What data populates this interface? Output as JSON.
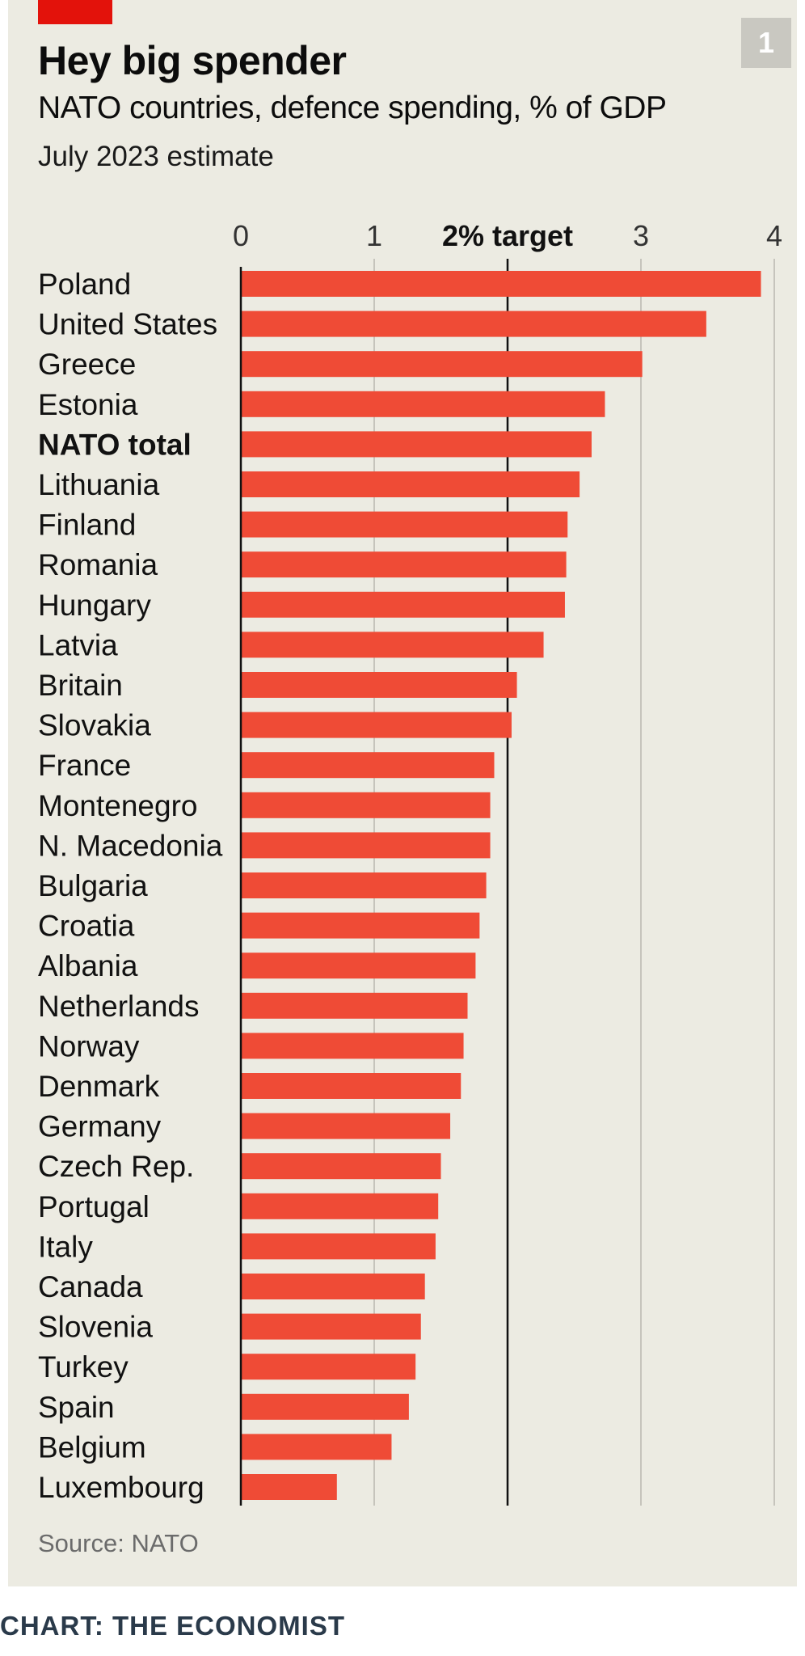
{
  "header": {
    "title": "Hey big spender",
    "subtitle": "NATO countries, defence spending, % of GDP",
    "note": "July 2023 estimate",
    "badge": "1"
  },
  "footer": {
    "source": "Source: NATO",
    "credit": "CHART: THE ECONOMIST"
  },
  "colors": {
    "bar": "#ef4b36",
    "background": "#ecebe2",
    "accent": "#e3120b"
  },
  "chart_data": {
    "type": "bar",
    "orientation": "horizontal",
    "title": "Hey big spender",
    "subtitle": "NATO countries, defence spending, % of GDP",
    "xlim": [
      0,
      4
    ],
    "x_ticks": [
      {
        "value": 0,
        "label": "0"
      },
      {
        "value": 1,
        "label": "1"
      },
      {
        "value": 2,
        "label": "2% target",
        "emphasis": true
      },
      {
        "value": 3,
        "label": "3"
      },
      {
        "value": 4,
        "label": "4"
      }
    ],
    "grid": true,
    "reference_line": 2,
    "categories": [
      "Poland",
      "United States",
      "Greece",
      "Estonia",
      "NATO total",
      "Lithuania",
      "Finland",
      "Romania",
      "Hungary",
      "Latvia",
      "Britain",
      "Slovakia",
      "France",
      "Montenegro",
      "N. Macedonia",
      "Bulgaria",
      "Croatia",
      "Albania",
      "Netherlands",
      "Norway",
      "Denmark",
      "Germany",
      "Czech Rep.",
      "Portugal",
      "Italy",
      "Canada",
      "Slovenia",
      "Turkey",
      "Spain",
      "Belgium",
      "Luxembourg"
    ],
    "values": [
      3.9,
      3.49,
      3.01,
      2.73,
      2.63,
      2.54,
      2.45,
      2.44,
      2.43,
      2.27,
      2.07,
      2.03,
      1.9,
      1.87,
      1.87,
      1.84,
      1.79,
      1.76,
      1.7,
      1.67,
      1.65,
      1.57,
      1.5,
      1.48,
      1.46,
      1.38,
      1.35,
      1.31,
      1.26,
      1.13,
      0.72
    ],
    "bold_categories": [
      "NATO total"
    ]
  }
}
